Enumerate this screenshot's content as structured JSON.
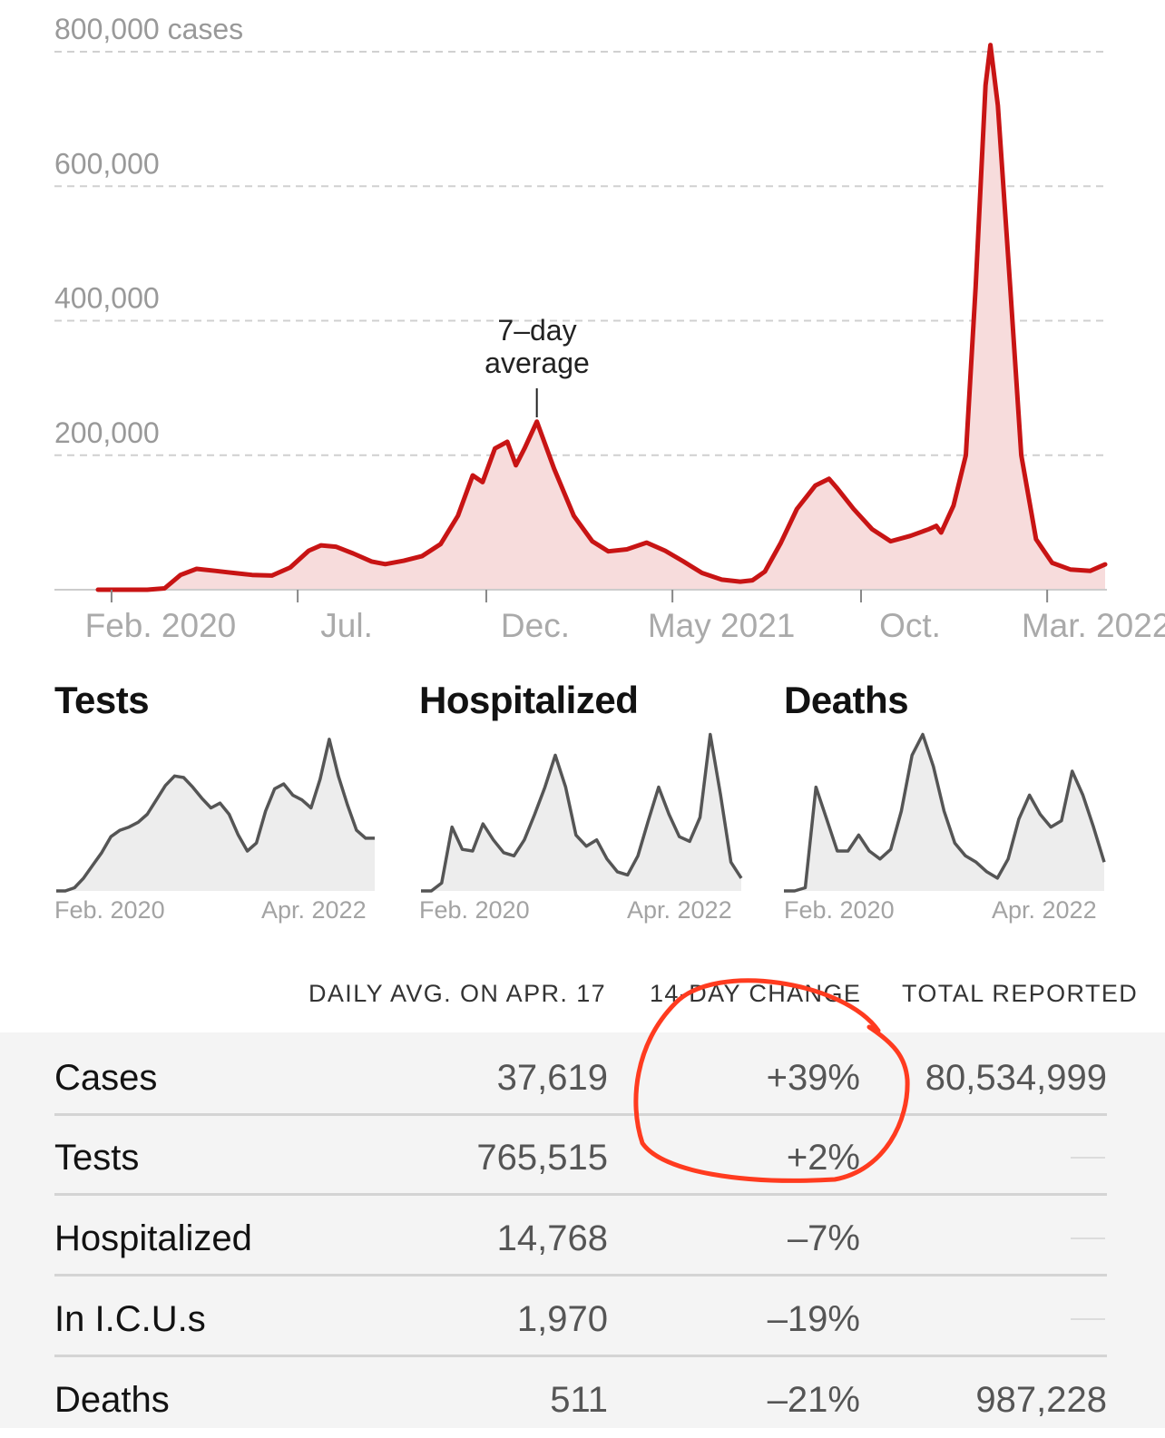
{
  "colors": {
    "cases_line": "#c81414",
    "cases_fill": "#f7dcdc",
    "mini_line": "#555555",
    "mini_fill": "#ededed",
    "grid": "#d0d0d0",
    "annotation": "#ff3b1f",
    "table_bg": "#f4f4f4"
  },
  "chart_data": [
    {
      "type": "area",
      "y_unit_label": "800,000 cases",
      "yticks": [
        {
          "value": 800000,
          "label": "800,000 cases"
        },
        {
          "value": 600000,
          "label": "600,000"
        },
        {
          "value": 400000,
          "label": "400,000"
        },
        {
          "value": 200000,
          "label": "200,000"
        }
      ],
      "ylim": [
        0,
        800000
      ],
      "xlim": [
        "2020-01-21",
        "2022-04-17"
      ],
      "xticks": [
        {
          "date": "2020-02-01",
          "label": "Feb. 2020"
        },
        {
          "date": "2020-07-01",
          "label": "Jul."
        },
        {
          "date": "2020-12-01",
          "label": "Dec."
        },
        {
          "date": "2021-05-01",
          "label": "May 2021"
        },
        {
          "date": "2021-10-01",
          "label": "Oct."
        },
        {
          "date": "2022-03-01",
          "label": "Mar. 2022"
        }
      ],
      "grid": true,
      "annotation": {
        "line1": "7–day",
        "line2": "average",
        "date": "2021-01-11"
      },
      "series": [
        {
          "points": [
            [
              "2020-01-21",
              0
            ],
            [
              "2020-03-01",
              0
            ],
            [
              "2020-03-15",
              2000
            ],
            [
              "2020-03-28",
              22000
            ],
            [
              "2020-04-10",
              31000
            ],
            [
              "2020-04-25",
              28000
            ],
            [
              "2020-05-10",
              25000
            ],
            [
              "2020-05-25",
              22000
            ],
            [
              "2020-06-10",
              21000
            ],
            [
              "2020-06-25",
              33000
            ],
            [
              "2020-07-10",
              58000
            ],
            [
              "2020-07-20",
              66000
            ],
            [
              "2020-08-01",
              64000
            ],
            [
              "2020-08-15",
              54000
            ],
            [
              "2020-08-30",
              42000
            ],
            [
              "2020-09-10",
              38000
            ],
            [
              "2020-09-25",
              43000
            ],
            [
              "2020-10-10",
              50000
            ],
            [
              "2020-10-25",
              68000
            ],
            [
              "2020-11-08",
              110000
            ],
            [
              "2020-11-20",
              170000
            ],
            [
              "2020-11-28",
              160000
            ],
            [
              "2020-12-08",
              210000
            ],
            [
              "2020-12-18",
              220000
            ],
            [
              "2020-12-25",
              185000
            ],
            [
              "2021-01-01",
              210000
            ],
            [
              "2021-01-11",
              250000
            ],
            [
              "2021-01-25",
              180000
            ],
            [
              "2021-02-10",
              110000
            ],
            [
              "2021-02-25",
              72000
            ],
            [
              "2021-03-10",
              57000
            ],
            [
              "2021-03-25",
              60000
            ],
            [
              "2021-04-10",
              70000
            ],
            [
              "2021-04-25",
              58000
            ],
            [
              "2021-05-10",
              42000
            ],
            [
              "2021-05-25",
              25000
            ],
            [
              "2021-06-10",
              15000
            ],
            [
              "2021-06-25",
              12000
            ],
            [
              "2021-07-05",
              14000
            ],
            [
              "2021-07-15",
              27000
            ],
            [
              "2021-07-28",
              70000
            ],
            [
              "2021-08-10",
              120000
            ],
            [
              "2021-08-25",
              155000
            ],
            [
              "2021-09-05",
              165000
            ],
            [
              "2021-09-12",
              150000
            ],
            [
              "2021-09-25",
              120000
            ],
            [
              "2021-10-10",
              90000
            ],
            [
              "2021-10-25",
              72000
            ],
            [
              "2021-11-10",
              80000
            ],
            [
              "2021-11-25",
              90000
            ],
            [
              "2021-12-01",
              95000
            ],
            [
              "2021-12-05",
              85000
            ],
            [
              "2021-12-15",
              125000
            ],
            [
              "2021-12-25",
              200000
            ],
            [
              "2022-01-02",
              450000
            ],
            [
              "2022-01-10",
              750000
            ],
            [
              "2022-01-14",
              810000
            ],
            [
              "2022-01-20",
              720000
            ],
            [
              "2022-01-30",
              450000
            ],
            [
              "2022-02-08",
              200000
            ],
            [
              "2022-02-20",
              75000
            ],
            [
              "2022-03-05",
              40000
            ],
            [
              "2022-03-20",
              30000
            ],
            [
              "2022-04-05",
              28000
            ],
            [
              "2022-04-17",
              37619
            ]
          ]
        }
      ]
    },
    {
      "type": "area",
      "title": "Tests",
      "x_start_label": "Feb. 2020",
      "x_end_label": "Apr. 2022",
      "series": [
        {
          "values": [
            0,
            0,
            0.02,
            0.08,
            0.16,
            0.24,
            0.34,
            0.38,
            0.4,
            0.43,
            0.48,
            0.57,
            0.66,
            0.72,
            0.71,
            0.65,
            0.58,
            0.52,
            0.55,
            0.48,
            0.35,
            0.25,
            0.3,
            0.5,
            0.64,
            0.67,
            0.6,
            0.57,
            0.52,
            0.7,
            0.95,
            0.72,
            0.54,
            0.38,
            0.33,
            0.33
          ]
        }
      ]
    },
    {
      "type": "area",
      "title": "Hospitalized",
      "x_start_label": "Feb. 2020",
      "x_end_label": "Apr. 2022",
      "series": [
        {
          "values": [
            0,
            0,
            0.05,
            0.4,
            0.26,
            0.25,
            0.42,
            0.32,
            0.24,
            0.22,
            0.32,
            0.48,
            0.65,
            0.85,
            0.65,
            0.35,
            0.28,
            0.32,
            0.2,
            0.12,
            0.1,
            0.22,
            0.44,
            0.65,
            0.48,
            0.34,
            0.31,
            0.46,
            0.98,
            0.6,
            0.18,
            0.08
          ]
        }
      ]
    },
    {
      "type": "area",
      "title": "Deaths",
      "x_start_label": "Feb. 2020",
      "x_end_label": "Apr. 2022",
      "series": [
        {
          "values": [
            0,
            0,
            0.02,
            0.65,
            0.45,
            0.25,
            0.25,
            0.35,
            0.25,
            0.2,
            0.26,
            0.5,
            0.85,
            0.98,
            0.78,
            0.5,
            0.3,
            0.22,
            0.18,
            0.12,
            0.08,
            0.2,
            0.45,
            0.6,
            0.48,
            0.4,
            0.44,
            0.75,
            0.6,
            0.4,
            0.18
          ]
        }
      ]
    }
  ],
  "table": {
    "headers": {
      "daily_avg": "DAILY AVG. ON APR. 17",
      "change": "14-DAY CHANGE",
      "total": "TOTAL REPORTED"
    },
    "rows": [
      {
        "name": "Cases",
        "daily": "37,619",
        "change": "+39%",
        "total": "80,534,999"
      },
      {
        "name": "Tests",
        "daily": "765,515",
        "change": "+2%",
        "total": ""
      },
      {
        "name": "Hospitalized",
        "daily": "14,768",
        "change": "–7%",
        "total": ""
      },
      {
        "name": "In I.C.U.s",
        "daily": "1,970",
        "change": "–19%",
        "total": ""
      },
      {
        "name": "Deaths",
        "daily": "511",
        "change": "–21%",
        "total": "987,228"
      }
    ]
  }
}
